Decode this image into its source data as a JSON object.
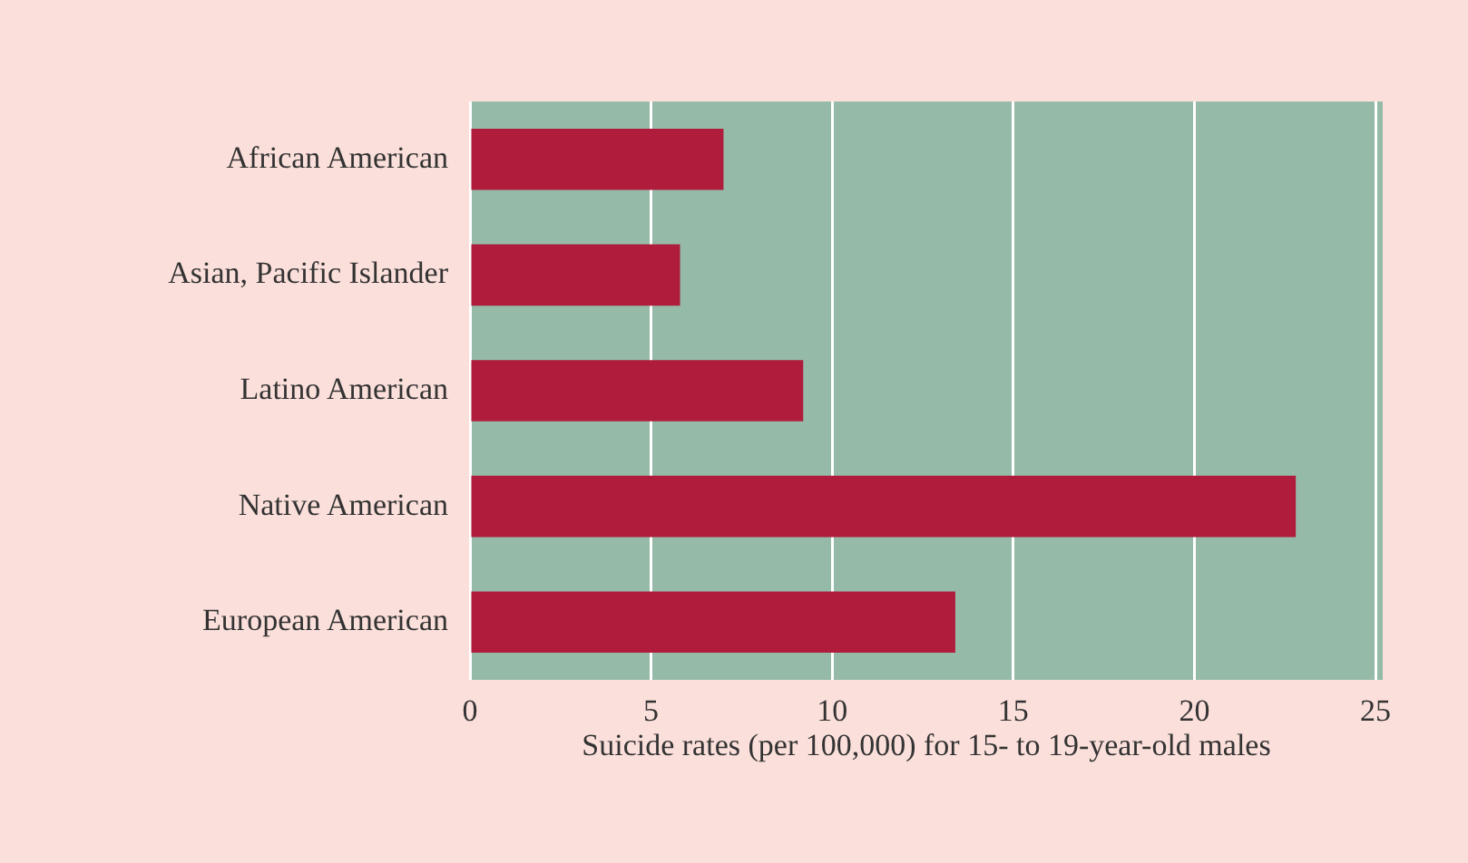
{
  "chart_data": {
    "type": "bar",
    "orientation": "horizontal",
    "xlabel": "Suicide rates (per 100,000) for 15- to 19-year-old males",
    "categories": [
      "African American",
      "Asian, Pacific Islander",
      "Latino American",
      "Native American",
      "European American"
    ],
    "values": [
      7.0,
      5.8,
      9.2,
      22.8,
      13.4
    ],
    "color": "#b01c3c",
    "xlim": [
      0,
      25.2
    ],
    "xticks": [
      0,
      5,
      10,
      15,
      20,
      25
    ],
    "grid": "x",
    "legend": false
  }
}
